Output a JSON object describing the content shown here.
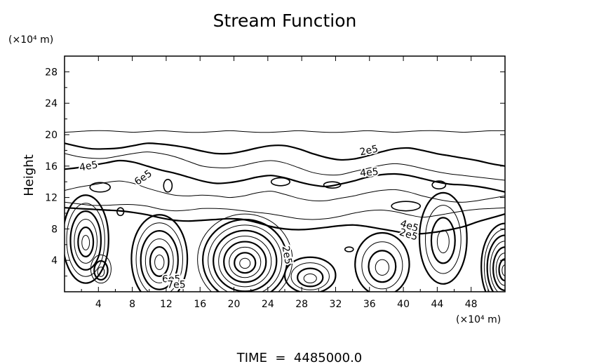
{
  "chart_data": {
    "type": "contour",
    "title": "Stream Function",
    "ylabel": "Height",
    "y_unit": "(×10⁴ m)",
    "x_unit": "(×10⁴ m)",
    "footer": "TIME  =  4485000.0",
    "xlim": [
      0,
      52
    ],
    "ylim": [
      0,
      30
    ],
    "x_ticks": [
      4,
      8,
      12,
      16,
      20,
      24,
      28,
      32,
      36,
      40,
      44,
      48
    ],
    "y_ticks": [
      4,
      8,
      12,
      16,
      20,
      24,
      28
    ],
    "grid": false,
    "contour_labels": [
      {
        "text": "2e5",
        "x": 36,
        "y": 17.6,
        "angle": -12
      },
      {
        "text": "4e5",
        "x": 2.9,
        "y": 15.6,
        "angle": -10
      },
      {
        "text": "6e5",
        "x": 9.5,
        "y": 14.2,
        "angle": -35
      },
      {
        "text": "4e5",
        "x": 36,
        "y": 14.8,
        "angle": -5
      },
      {
        "text": "4e5",
        "x": 40.6,
        "y": 8.0,
        "angle": 18
      },
      {
        "text": "2e5",
        "x": 40.5,
        "y": 6.9,
        "angle": 18
      },
      {
        "text": "2e5",
        "x": 25.9,
        "y": 4.6,
        "angle": 80
      },
      {
        "text": "6e5",
        "x": 12.6,
        "y": 1.2,
        "angle": 0
      },
      {
        "text": "7e5",
        "x": 13.2,
        "y": 0.5,
        "angle": 0
      }
    ],
    "vortex_centers": [
      {
        "x": 2.5,
        "y": 6.7,
        "rx": 2.7,
        "ry": 5.6,
        "rings": 6
      },
      {
        "x": 4.3,
        "y": 2.9,
        "rx": 1.2,
        "ry": 1.8,
        "rings": 3
      },
      {
        "x": 11.2,
        "y": 4.2,
        "rx": 3.3,
        "ry": 5.6,
        "rings": 6
      },
      {
        "x": 21.3,
        "y": 4.1,
        "rx": 5.6,
        "ry": 5.8,
        "rings": 9
      },
      {
        "x": 29.0,
        "y": 2.1,
        "rx": 3.0,
        "ry": 2.3,
        "rings": 4
      },
      {
        "x": 37.5,
        "y": 3.5,
        "rx": 3.2,
        "ry": 4.0,
        "rings": 4
      },
      {
        "x": 44.7,
        "y": 6.8,
        "rx": 2.8,
        "ry": 5.8,
        "rings": 4
      },
      {
        "x": 52.0,
        "y": 3.2,
        "rx": 2.8,
        "ry": 5.5,
        "rings": 8
      }
    ],
    "level_lines": [
      {
        "heavy": true,
        "y": [
          18.9,
          18.5,
          18.2,
          18.2,
          18.3,
          18.6,
          18.9,
          18.8,
          18.6,
          18.3,
          17.9,
          17.6,
          17.6,
          17.9,
          18.3,
          18.6,
          18.6,
          18.2,
          17.6,
          17.1,
          16.8,
          16.9,
          17.3,
          17.8,
          18.2,
          18.3,
          18.0,
          17.6,
          17.3,
          17.0,
          16.7,
          16.3,
          16.0
        ]
      },
      {
        "heavy": false,
        "y": [
          17.6,
          17.2,
          17.0,
          17.0,
          17.3,
          17.6,
          17.8,
          17.6,
          17.2,
          16.6,
          16.0,
          15.8,
          15.8,
          16.1,
          16.5,
          16.7,
          16.4,
          15.8,
          15.2,
          14.9,
          14.9,
          15.3,
          15.7,
          16.1,
          16.3,
          16.1,
          15.7,
          15.3,
          15.0,
          14.8,
          14.6,
          14.4,
          14.2
        ]
      },
      {
        "heavy": true,
        "y": [
          15.6,
          15.8,
          16.1,
          16.4,
          16.7,
          16.5,
          16.0,
          15.5,
          15.1,
          14.6,
          14.1,
          13.8,
          13.9,
          14.2,
          14.6,
          14.8,
          14.5,
          14.0,
          13.6,
          13.4,
          13.7,
          14.1,
          14.6,
          14.9,
          15.0,
          14.8,
          14.4,
          14.0,
          13.7,
          13.6,
          13.4,
          13.1,
          12.7
        ]
      },
      {
        "heavy": false,
        "y": [
          12.9,
          13.3,
          13.6,
          13.9,
          14.1,
          13.8,
          13.2,
          12.7,
          12.3,
          12.2,
          12.3,
          12.2,
          12.0,
          12.2,
          12.6,
          12.8,
          12.4,
          11.9,
          11.6,
          11.6,
          11.9,
          12.2,
          12.6,
          12.9,
          13.0,
          12.7,
          12.2,
          11.8,
          11.5,
          11.4,
          11.6,
          11.9,
          12.2
        ]
      },
      {
        "heavy": false,
        "y": [
          11.4,
          11.2,
          11.0,
          11.0,
          11.1,
          11.1,
          10.9,
          10.5,
          10.3,
          10.4,
          10.6,
          10.6,
          10.5,
          10.3,
          10.1,
          9.9,
          9.6,
          9.3,
          9.2,
          9.3,
          9.6,
          10.0,
          10.3,
          10.4,
          10.2,
          9.8,
          9.5,
          9.7,
          10.0,
          10.3,
          10.5,
          10.6,
          10.7
        ]
      },
      {
        "heavy": true,
        "y": [
          10.7,
          10.6,
          10.5,
          10.4,
          10.3,
          10.1,
          9.8,
          9.4,
          9.1,
          9.0,
          9.1,
          9.2,
          9.3,
          9.2,
          8.8,
          8.3,
          8.0,
          7.9,
          8.0,
          8.2,
          8.4,
          8.5,
          8.3,
          8.0,
          7.7,
          7.4,
          7.4,
          7.6,
          7.9,
          8.3,
          8.9,
          9.4,
          9.9
        ]
      },
      {
        "heavy": false,
        "y": [
          20.3,
          20.4,
          20.5,
          20.5,
          20.4,
          20.3,
          20.4,
          20.5,
          20.4,
          20.3,
          20.3,
          20.4,
          20.5,
          20.4,
          20.3,
          20.3,
          20.4,
          20.5,
          20.4,
          20.3,
          20.3,
          20.4,
          20.5,
          20.4,
          20.3,
          20.4,
          20.5,
          20.5,
          20.4,
          20.3,
          20.4,
          20.5,
          20.5
        ]
      }
    ],
    "small_cells": [
      {
        "x": 4.2,
        "y": 13.3,
        "rx": 1.2,
        "ry": 0.6
      },
      {
        "x": 12.2,
        "y": 13.5,
        "rx": 0.5,
        "ry": 0.8
      },
      {
        "x": 25.5,
        "y": 14.0,
        "rx": 1.1,
        "ry": 0.5
      },
      {
        "x": 31.6,
        "y": 13.6,
        "rx": 1.0,
        "ry": 0.4
      },
      {
        "x": 40.3,
        "y": 10.9,
        "rx": 1.7,
        "ry": 0.6
      },
      {
        "x": 44.2,
        "y": 13.6,
        "rx": 0.8,
        "ry": 0.5
      },
      {
        "x": 33.6,
        "y": 5.4,
        "rx": 0.5,
        "ry": 0.3
      },
      {
        "x": 6.6,
        "y": 10.2,
        "rx": 0.4,
        "ry": 0.5
      }
    ]
  }
}
